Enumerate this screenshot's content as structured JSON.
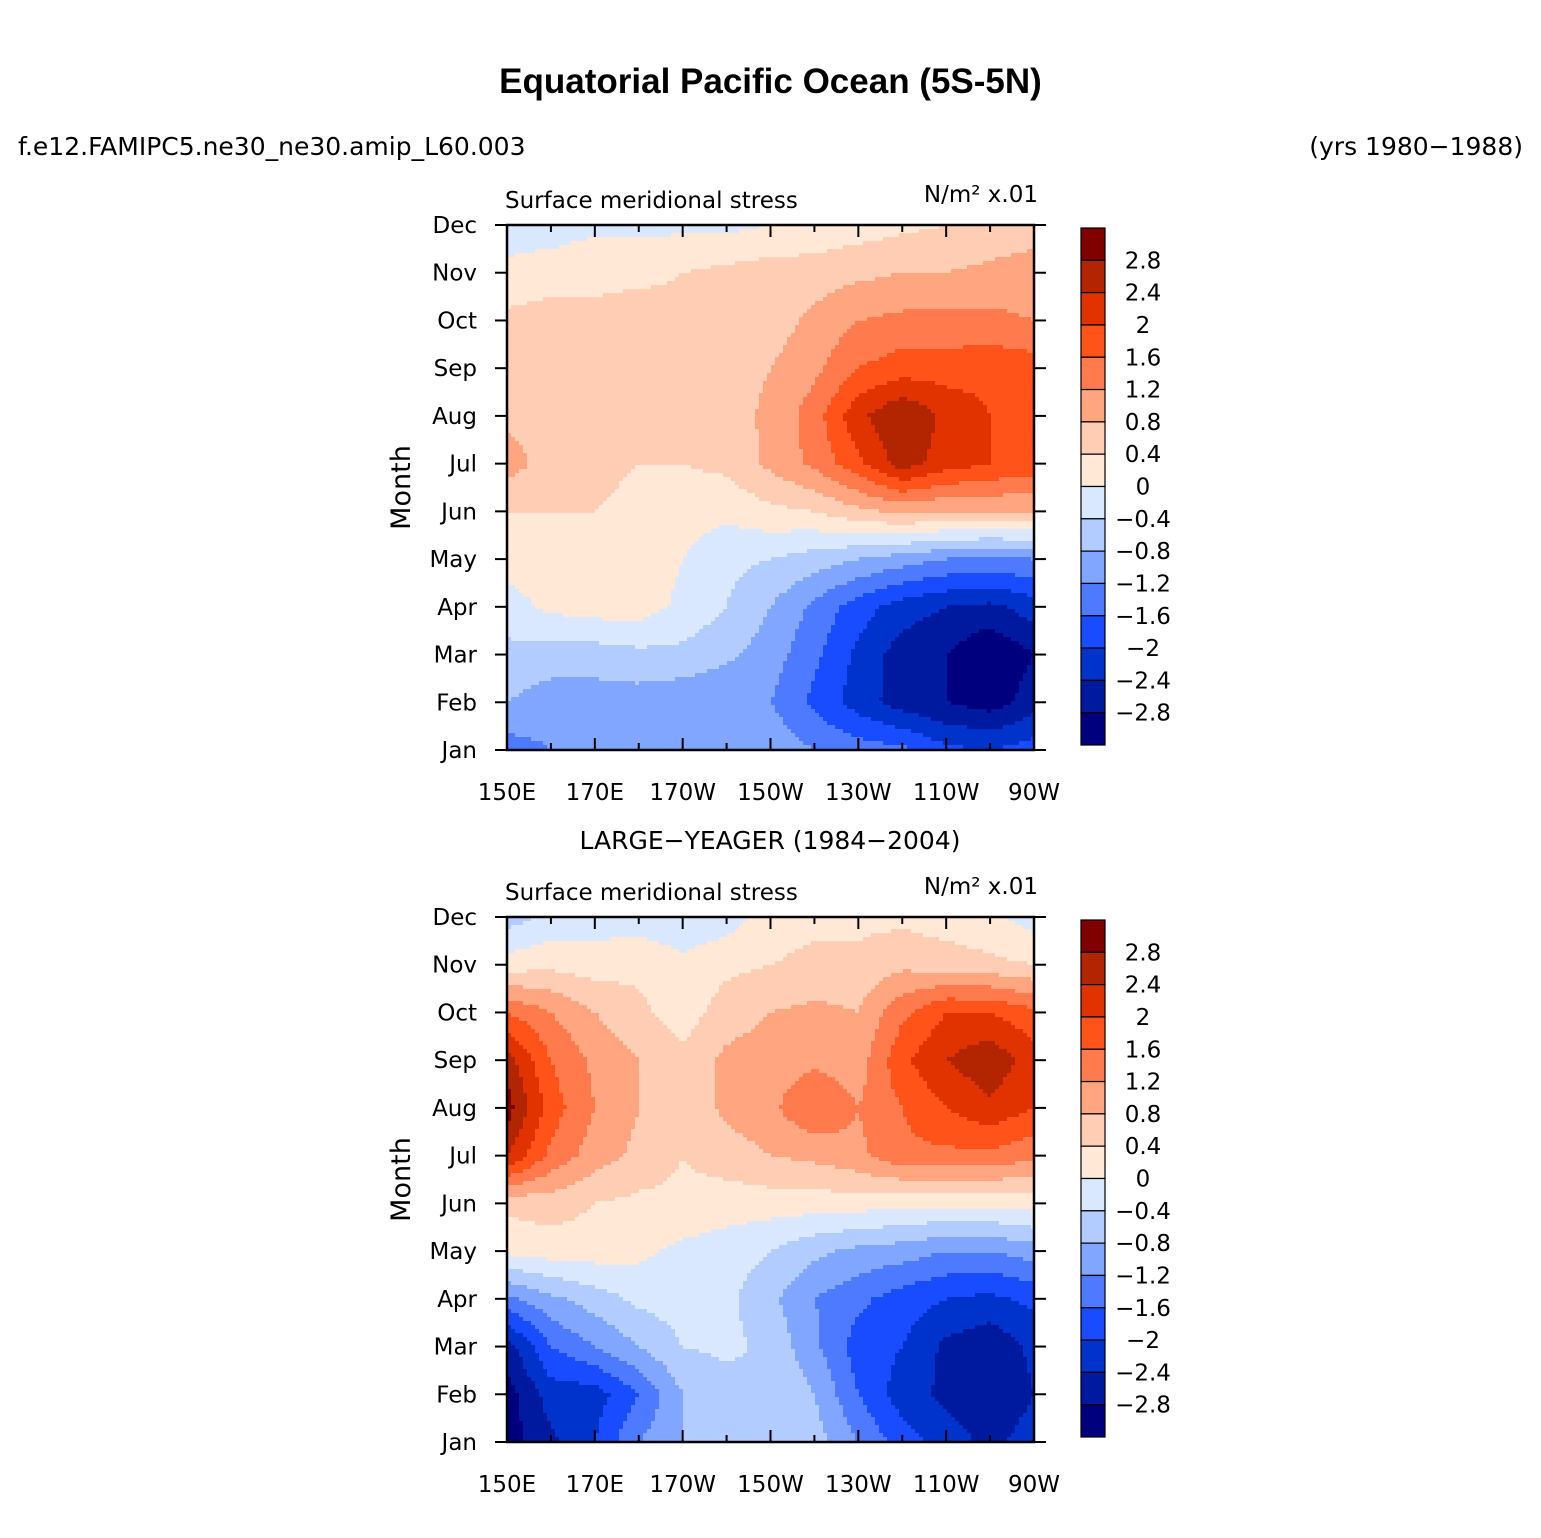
{
  "title": "Equatorial Pacific Ocean (5S-5N)",
  "case_name": "f.e12.FAMIPC5.ne30_ne30.amip_L60.003",
  "years": "(yrs 1980−1988)",
  "chart_data": [
    {
      "type": "heatmap",
      "panel": "model",
      "left_title": "Surface meridional stress",
      "units": "N/m² x.01",
      "ylabel": "Month",
      "x_ticks": [
        "150E",
        "170E",
        "170W",
        "150W",
        "130W",
        "110W",
        "90W"
      ],
      "y_ticks": [
        "Jan",
        "Feb",
        "Mar",
        "Apr",
        "May",
        "Jun",
        "Jul",
        "Aug",
        "Sep",
        "Oct",
        "Nov",
        "Dec"
      ],
      "x": [
        150,
        160,
        170,
        180,
        190,
        200,
        210,
        220,
        230,
        240,
        250,
        260,
        270
      ],
      "z": [
        [
          -1.4,
          -1.2,
          -1.2,
          -1.1,
          -1.0,
          -0.9,
          -0.9,
          -1.2,
          -1.4,
          -1.5,
          -1.9,
          -2.0,
          -1.8
        ],
        [
          -0.8,
          -1.0,
          -1.0,
          -1.0,
          -1.1,
          -1.2,
          -1.2,
          -1.7,
          -2.2,
          -2.6,
          -2.8,
          -3.0,
          -2.6
        ],
        [
          -0.5,
          -0.6,
          -0.6,
          -0.5,
          -0.5,
          -0.7,
          -1.0,
          -1.5,
          -2.1,
          -2.6,
          -2.8,
          -3.2,
          -2.8
        ],
        [
          -0.2,
          0.1,
          0.2,
          0.2,
          -0.1,
          -0.4,
          -0.8,
          -1.3,
          -1.8,
          -2.2,
          -2.4,
          -2.5,
          -2.2
        ],
        [
          0.2,
          0.3,
          0.3,
          0.3,
          0.0,
          -0.3,
          -0.4,
          -0.6,
          -0.8,
          -1.0,
          -1.2,
          -1.3,
          -1.2
        ],
        [
          0.4,
          0.4,
          0.4,
          0.3,
          0.2,
          0.1,
          0.3,
          0.4,
          0.7,
          0.9,
          0.8,
          0.8,
          0.8
        ],
        [
          1.0,
          0.6,
          0.5,
          0.4,
          0.4,
          0.5,
          0.9,
          1.3,
          1.9,
          2.6,
          2.2,
          2.0,
          1.9
        ],
        [
          0.7,
          0.6,
          0.5,
          0.6,
          0.5,
          0.6,
          0.9,
          1.4,
          2.3,
          2.8,
          2.3,
          2.0,
          1.8
        ],
        [
          0.5,
          0.5,
          0.6,
          0.5,
          0.5,
          0.6,
          0.8,
          1.1,
          1.6,
          1.8,
          1.8,
          1.9,
          1.8
        ],
        [
          0.5,
          0.6,
          0.5,
          0.6,
          0.5,
          0.5,
          0.6,
          0.9,
          1.2,
          1.3,
          1.3,
          1.3,
          1.2
        ],
        [
          0.1,
          0.2,
          0.3,
          0.3,
          0.4,
          0.5,
          0.6,
          0.6,
          0.7,
          0.8,
          0.8,
          0.9,
          1.0
        ],
        [
          -0.2,
          -0.2,
          -0.1,
          -0.1,
          -0.1,
          -0.1,
          0.0,
          0.1,
          0.2,
          0.3,
          0.4,
          0.5,
          0.6
        ]
      ],
      "levels": [
        -2.8,
        -2.4,
        -2.0,
        -1.6,
        -1.2,
        -0.8,
        -0.4,
        0,
        0.4,
        0.8,
        1.2,
        1.6,
        2.0,
        2.4,
        2.8
      ],
      "colorbar_labels": [
        "2.8",
        "2.4",
        "2",
        "1.6",
        "1.2",
        "0.8",
        "0.4",
        "0",
        "−0.4",
        "−0.8",
        "−1.2",
        "−1.6",
        "−2",
        "−2.4",
        "−2.8"
      ],
      "colors": [
        "#00007f",
        "#001a9f",
        "#0033cc",
        "#1a4cff",
        "#4d7aff",
        "#80a6ff",
        "#b3ccff",
        "#d9e8ff",
        "#ffe8d6",
        "#ffcdb3",
        "#ffa680",
        "#ff7a4d",
        "#ff531a",
        "#e03300",
        "#b32400",
        "#800000"
      ]
    },
    {
      "type": "heatmap",
      "panel": "observations",
      "center_title": "LARGE−YEAGER (1984−2004)",
      "left_title": "Surface meridional stress",
      "units": "N/m² x.01",
      "ylabel": "Month",
      "x_ticks": [
        "150E",
        "170E",
        "170W",
        "150W",
        "130W",
        "110W",
        "90W"
      ],
      "y_ticks": [
        "Jan",
        "Feb",
        "Mar",
        "Apr",
        "May",
        "Jun",
        "Jul",
        "Aug",
        "Sep",
        "Oct",
        "Nov",
        "Dec"
      ],
      "x": [
        150,
        160,
        170,
        180,
        190,
        200,
        210,
        220,
        230,
        240,
        250,
        260,
        270
      ],
      "z": [
        [
          -3.0,
          -2.5,
          -2.0,
          -1.2,
          -0.8,
          -0.6,
          -0.4,
          -0.6,
          -1.2,
          -1.8,
          -2.2,
          -2.5,
          -2.2
        ],
        [
          -3.0,
          -2.2,
          -2.2,
          -1.6,
          -0.8,
          -0.6,
          -0.4,
          -0.8,
          -1.6,
          -2.2,
          -2.5,
          -2.8,
          -2.4
        ],
        [
          -2.6,
          -1.6,
          -1.2,
          -0.8,
          -0.4,
          -0.3,
          -0.5,
          -1.1,
          -1.8,
          -2.0,
          -2.5,
          -2.7,
          -2.3
        ],
        [
          -1.3,
          -0.9,
          -0.6,
          -0.3,
          -0.2,
          -0.3,
          -0.7,
          -1.2,
          -1.5,
          -1.8,
          -2.0,
          -2.1,
          -1.9
        ],
        [
          0.1,
          0.2,
          0.2,
          0.1,
          -0.1,
          -0.2,
          -0.4,
          -0.7,
          -0.9,
          -1.0,
          -1.2,
          -1.2,
          -1.0
        ],
        [
          0.5,
          0.6,
          0.4,
          0.3,
          0.3,
          0.2,
          0.2,
          0.2,
          0.2,
          0.1,
          0.1,
          0.1,
          0.2
        ],
        [
          2.4,
          1.5,
          1.0,
          0.7,
          0.4,
          0.6,
          0.8,
          0.9,
          1.1,
          1.5,
          1.5,
          1.5,
          1.3
        ],
        [
          3.0,
          1.8,
          1.2,
          0.8,
          0.5,
          0.9,
          1.1,
          1.6,
          1.2,
          1.6,
          2.0,
          2.3,
          2.0
        ],
        [
          2.6,
          1.6,
          1.1,
          0.8,
          0.5,
          0.9,
          1.0,
          1.1,
          1.0,
          1.9,
          2.4,
          2.7,
          2.2
        ],
        [
          1.6,
          1.2,
          0.8,
          0.5,
          0.2,
          0.6,
          0.8,
          0.9,
          0.8,
          1.5,
          2.0,
          2.0,
          1.7
        ],
        [
          0.2,
          0.3,
          0.2,
          0.3,
          0.1,
          0.3,
          0.4,
          0.5,
          0.5,
          0.7,
          0.6,
          0.5,
          0.4
        ],
        [
          -0.6,
          -0.3,
          -0.2,
          -0.2,
          -0.3,
          -0.2,
          0.2,
          0.3,
          0.3,
          0.3,
          0.2,
          0.1,
          -0.2
        ]
      ],
      "levels": [
        -2.8,
        -2.4,
        -2.0,
        -1.6,
        -1.2,
        -0.8,
        -0.4,
        0,
        0.4,
        0.8,
        1.2,
        1.6,
        2.0,
        2.4,
        2.8
      ],
      "colorbar_labels": [
        "2.8",
        "2.4",
        "2",
        "1.6",
        "1.2",
        "0.8",
        "0.4",
        "0",
        "−0.4",
        "−0.8",
        "−1.2",
        "−1.6",
        "−2",
        "−2.4",
        "−2.8"
      ],
      "colors": [
        "#00007f",
        "#001a9f",
        "#0033cc",
        "#1a4cff",
        "#4d7aff",
        "#80a6ff",
        "#b3ccff",
        "#d9e8ff",
        "#ffe8d6",
        "#ffcdb3",
        "#ffa680",
        "#ff7a4d",
        "#ff531a",
        "#e03300",
        "#b32400",
        "#800000"
      ]
    }
  ]
}
